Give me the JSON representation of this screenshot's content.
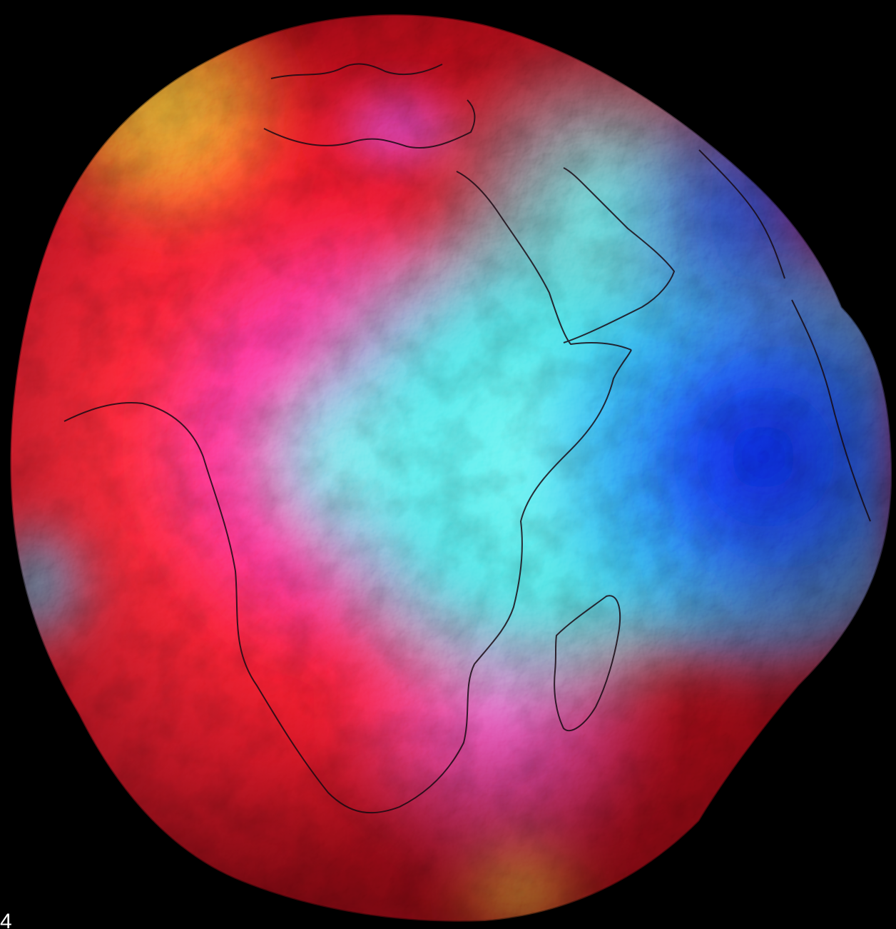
{
  "image": {
    "subject": "geoid-globe",
    "background_color": "#000000",
    "palette": {
      "high": "#ff1f2e",
      "upper": "#ff3fd0",
      "mid": "#3ff0ee",
      "low": "#1530e8",
      "peak": "#ffb020"
    }
  },
  "corner_label": "4"
}
